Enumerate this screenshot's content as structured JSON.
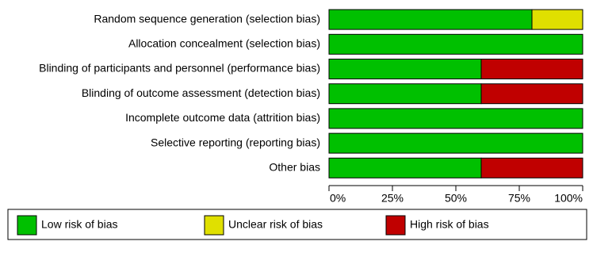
{
  "chart_data": {
    "type": "stacked-bar-horizontal",
    "categories": [
      "Random sequence generation (selection bias)",
      "Allocation concealment (selection bias)",
      "Blinding of participants and personnel (performance bias)",
      "Blinding of outcome assessment (detection bias)",
      "Incomplete outcome data (attrition bias)",
      "Selective reporting (reporting bias)",
      "Other bias"
    ],
    "series": [
      {
        "name": "Low risk of bias",
        "color": "#00c000",
        "values": [
          80,
          100,
          60,
          60,
          100,
          100,
          60
        ]
      },
      {
        "name": "Unclear risk of bias",
        "color": "#e0e000",
        "values": [
          20,
          0,
          0,
          0,
          0,
          0,
          0
        ]
      },
      {
        "name": "High risk of bias",
        "color": "#c00000",
        "values": [
          0,
          0,
          40,
          40,
          0,
          0,
          40
        ]
      }
    ],
    "xlim": [
      0,
      100
    ],
    "xticks": [
      {
        "value": 0,
        "label": "0%"
      },
      {
        "value": 25,
        "label": "25%"
      },
      {
        "value": 50,
        "label": "50%"
      },
      {
        "value": 75,
        "label": "75%"
      },
      {
        "value": 100,
        "label": "100%"
      }
    ]
  }
}
